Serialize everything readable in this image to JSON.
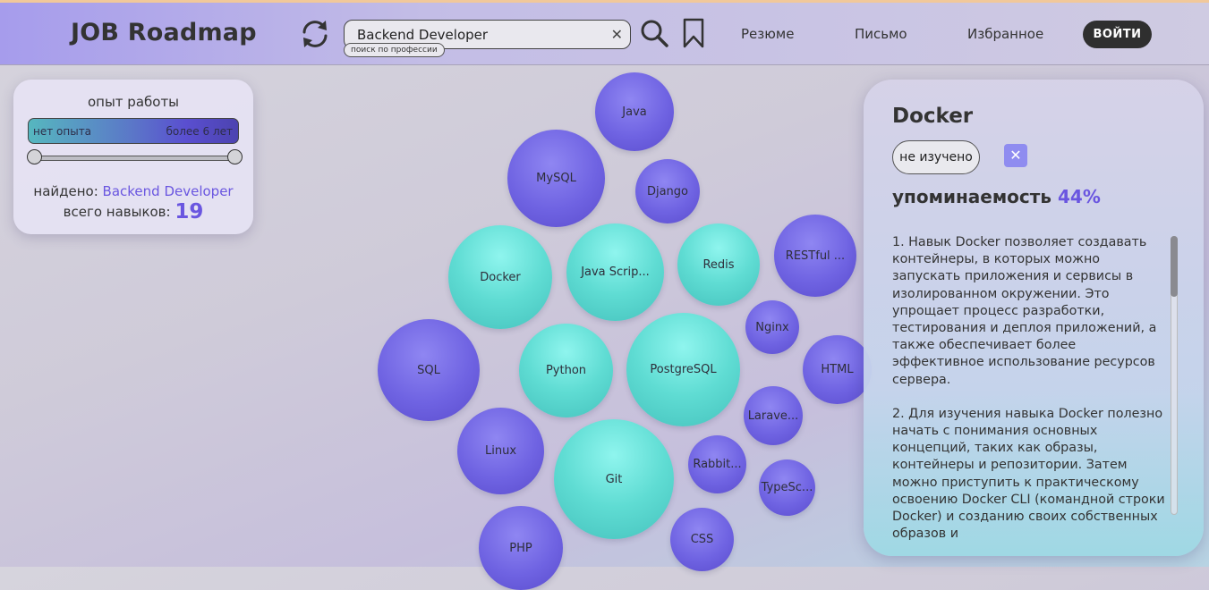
{
  "header": {
    "logo": "JOB Roadmap",
    "search": {
      "value": "Backend Developer",
      "hint": "поиск по профессии"
    },
    "nav": [
      "Резюме",
      "Письмо",
      "Избранное"
    ],
    "login": "ВОЙТИ"
  },
  "experience": {
    "title": "опыт работы",
    "min_label": "нет опыта",
    "max_label": "более 6 лет",
    "range": [
      0,
      1
    ],
    "found_label": "найдено: ",
    "found_value": "Backend Developer",
    "total_label": "всего навыков: ",
    "total_value": "19"
  },
  "bubbles": [
    {
      "label": "Java",
      "color": "purple"
    },
    {
      "label": "MySQL",
      "color": "purple"
    },
    {
      "label": "Django",
      "color": "purple"
    },
    {
      "label": "Docker",
      "color": "teal"
    },
    {
      "label": "Java Scrip...",
      "color": "teal"
    },
    {
      "label": "Redis",
      "color": "teal"
    },
    {
      "label": "RESTful ...",
      "color": "purple"
    },
    {
      "label": "Nginx",
      "color": "purple"
    },
    {
      "label": "SQL",
      "color": "purple"
    },
    {
      "label": "Python",
      "color": "teal"
    },
    {
      "label": "PostgreSQL",
      "color": "teal"
    },
    {
      "label": "HTML",
      "color": "purple"
    },
    {
      "label": "Larave...",
      "color": "purple"
    },
    {
      "label": "Linux",
      "color": "purple"
    },
    {
      "label": "Git",
      "color": "teal"
    },
    {
      "label": "Rabbit...",
      "color": "purple"
    },
    {
      "label": "TypeSc...",
      "color": "purple"
    },
    {
      "label": "PHP",
      "color": "purple"
    },
    {
      "label": "CSS",
      "color": "purple"
    }
  ],
  "detail": {
    "title": "Docker",
    "status": "не изучено",
    "close": "✕",
    "mention_label": "упоминаемость ",
    "mention_value": "44%",
    "paragraphs": [
      "1. Навык Docker позволяет создавать контейнеры, в которых можно запускать приложения и сервисы в изолированном окружении. Это упрощает процесс разработки, тестирования и деплоя приложений, а также обеспечивает более эффективное использование ресурсов сервера.",
      "2. Для изучения навыка Docker полезно начать с понимания основных концепций, таких как образы, контейнеры и репозитории. Затем можно приступить к практическому освоению Docker CLI (командной строки Docker) и созданию своих собственных образов и"
    ]
  },
  "colors": {
    "accent": "#6a56e0",
    "purple": "#6f63e2",
    "teal": "#5fdcd3",
    "dark": "#2f2f2f"
  },
  "icons": [
    "refresh-icon",
    "search-icon",
    "bookmark-icon",
    "close-icon"
  ]
}
